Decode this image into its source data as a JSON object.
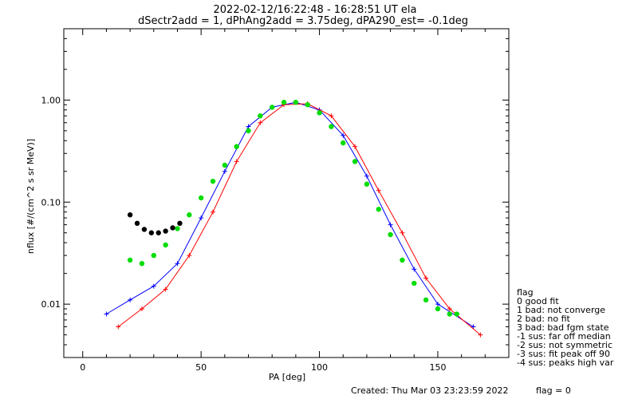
{
  "chart_data": {
    "type": "line",
    "title_lines": [
      "2022-02-12/16:22:48 - 16:28:51 UT ela",
      "dSectr2add = 1, dPhAng2add = 3.75deg, dPA290_est=  -0.1deg"
    ],
    "xlabel": "PA [deg]",
    "ylabel": "nflux [#/(cm^2 s sr MeV)]",
    "xlim": [
      -8,
      180
    ],
    "ylim": [
      0.003,
      5.0
    ],
    "y_scale": "log",
    "x_ticks": [
      0,
      50,
      100,
      150
    ],
    "y_ticks": [
      {
        "value": 0.01,
        "label": "0.01"
      },
      {
        "value": 0.1,
        "label": "0.10"
      },
      {
        "value": 1.0,
        "label": "1.00"
      }
    ],
    "grid": false,
    "colors": {
      "blue_series": "#0000ff",
      "red_series": "#ff0000",
      "fit": "#00dd00",
      "fit_low": "#000000"
    },
    "series": [
      {
        "color": "blue",
        "x": [
          10,
          20,
          30,
          40,
          50,
          60,
          70,
          80,
          90,
          100,
          110,
          120,
          130,
          140,
          150,
          165
        ],
        "y": [
          0.008,
          0.011,
          0.015,
          0.025,
          0.07,
          0.2,
          0.55,
          0.85,
          0.95,
          0.8,
          0.45,
          0.18,
          0.06,
          0.022,
          0.01,
          0.006
        ]
      },
      {
        "color": "red",
        "x": [
          15,
          25,
          35,
          45,
          55,
          65,
          75,
          85,
          95,
          105,
          115,
          125,
          135,
          145,
          155,
          168
        ],
        "y": [
          0.006,
          0.009,
          0.014,
          0.03,
          0.08,
          0.25,
          0.6,
          0.9,
          0.92,
          0.7,
          0.35,
          0.13,
          0.05,
          0.018,
          0.009,
          0.005
        ]
      }
    ],
    "fit_curve": {
      "x": [
        20,
        25,
        30,
        35,
        40,
        45,
        50,
        55,
        60,
        65,
        70,
        75,
        80,
        85,
        90,
        95,
        100,
        105,
        110,
        115,
        120,
        125,
        130,
        135,
        140,
        145,
        150,
        155,
        158
      ],
      "y": [
        0.027,
        0.025,
        0.03,
        0.038,
        0.055,
        0.075,
        0.11,
        0.16,
        0.23,
        0.35,
        0.5,
        0.7,
        0.85,
        0.95,
        0.95,
        0.9,
        0.75,
        0.55,
        0.38,
        0.25,
        0.15,
        0.085,
        0.048,
        0.027,
        0.016,
        0.011,
        0.009,
        0.008,
        0.008
      ]
    },
    "fit_curve_low": {
      "x": [
        20,
        23,
        26,
        29,
        32,
        35,
        38,
        41
      ],
      "y": [
        0.075,
        0.062,
        0.054,
        0.05,
        0.05,
        0.052,
        0.056,
        0.062
      ]
    },
    "legend": {
      "placement": "right",
      "title": "flag",
      "items": [
        " 0 good fit",
        " 1 bad: not converge",
        " 2 bad: no fit",
        " 3 bad: bad fgm state",
        "-1 sus: far off median",
        "-2 sus: not symmetric",
        "-3 sus: fit peak off 90",
        "-4 sus: peaks high var"
      ]
    }
  },
  "footer": {
    "created": "Created: Thu Mar 03 23:23:59 2022",
    "flag": "flag = 0"
  }
}
